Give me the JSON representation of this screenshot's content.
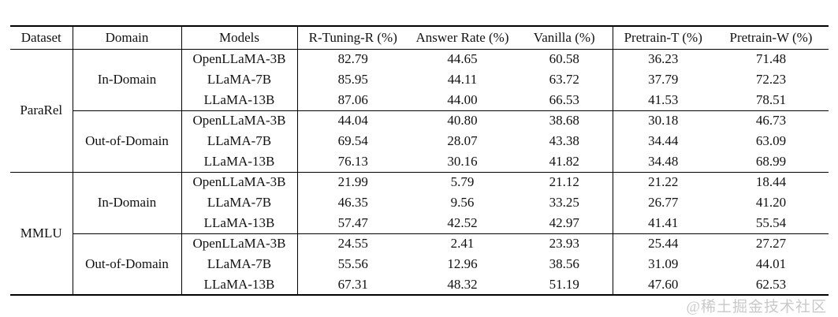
{
  "watermark": "@稀土掘金技术社区",
  "table": {
    "columns": [
      "Dataset",
      "Domain",
      "Models",
      "R-Tuning-R (%)",
      "Answer Rate (%)",
      "Vanilla (%)",
      "Pretrain-T (%)",
      "Pretrain-W (%)"
    ],
    "sections": [
      {
        "dataset": "ParaRel",
        "groups": [
          {
            "domain": "In-Domain",
            "rows": [
              {
                "model": "OpenLLaMA-3B",
                "values": [
                  {
                    "v": "82.79",
                    "bold": true
                  },
                  {
                    "v": "44.65",
                    "bold": false
                  },
                  {
                    "v": "60.58",
                    "bold": false
                  },
                  {
                    "v": "36.23",
                    "bold": false
                  },
                  {
                    "v": "71.48",
                    "bold": false
                  }
                ]
              },
              {
                "model": "LLaMA-7B",
                "values": [
                  {
                    "v": "85.95",
                    "bold": true
                  },
                  {
                    "v": "44.11",
                    "bold": false
                  },
                  {
                    "v": "63.72",
                    "bold": false
                  },
                  {
                    "v": "37.79",
                    "bold": false
                  },
                  {
                    "v": "72.23",
                    "bold": false
                  }
                ]
              },
              {
                "model": "LLaMA-13B",
                "values": [
                  {
                    "v": "87.06",
                    "bold": true
                  },
                  {
                    "v": "44.00",
                    "bold": false
                  },
                  {
                    "v": "66.53",
                    "bold": false
                  },
                  {
                    "v": "41.53",
                    "bold": false
                  },
                  {
                    "v": "78.51",
                    "bold": false
                  }
                ]
              }
            ]
          },
          {
            "domain": "Out-of-Domain",
            "rows": [
              {
                "model": "OpenLLaMA-3B",
                "values": [
                  {
                    "v": "44.04",
                    "bold": false
                  },
                  {
                    "v": "40.80",
                    "bold": false
                  },
                  {
                    "v": "38.68",
                    "bold": false
                  },
                  {
                    "v": "30.18",
                    "bold": false
                  },
                  {
                    "v": "46.73",
                    "bold": true
                  }
                ]
              },
              {
                "model": "LLaMA-7B",
                "values": [
                  {
                    "v": "69.54",
                    "bold": true
                  },
                  {
                    "v": "28.07",
                    "bold": false
                  },
                  {
                    "v": "43.38",
                    "bold": false
                  },
                  {
                    "v": "34.44",
                    "bold": false
                  },
                  {
                    "v": "63.09",
                    "bold": false
                  }
                ]
              },
              {
                "model": "LLaMA-13B",
                "values": [
                  {
                    "v": "76.13",
                    "bold": true
                  },
                  {
                    "v": "30.16",
                    "bold": false
                  },
                  {
                    "v": "41.82",
                    "bold": false
                  },
                  {
                    "v": "34.48",
                    "bold": false
                  },
                  {
                    "v": "68.99",
                    "bold": false
                  }
                ]
              }
            ]
          }
        ]
      },
      {
        "dataset": "MMLU",
        "groups": [
          {
            "domain": "In-Domain",
            "rows": [
              {
                "model": "OpenLLaMA-3B",
                "values": [
                  {
                    "v": "21.99",
                    "bold": true
                  },
                  {
                    "v": "5.79",
                    "bold": false
                  },
                  {
                    "v": "21.12",
                    "bold": false
                  },
                  {
                    "v": "21.22",
                    "bold": false
                  },
                  {
                    "v": "18.44",
                    "bold": false
                  }
                ]
              },
              {
                "model": "LLaMA-7B",
                "values": [
                  {
                    "v": "46.35",
                    "bold": true
                  },
                  {
                    "v": "9.56",
                    "bold": false
                  },
                  {
                    "v": "33.25",
                    "bold": false
                  },
                  {
                    "v": "26.77",
                    "bold": false
                  },
                  {
                    "v": "41.20",
                    "bold": false
                  }
                ]
              },
              {
                "model": "LLaMA-13B",
                "values": [
                  {
                    "v": "57.47",
                    "bold": true
                  },
                  {
                    "v": "42.52",
                    "bold": false
                  },
                  {
                    "v": "42.97",
                    "bold": false
                  },
                  {
                    "v": "41.41",
                    "bold": false
                  },
                  {
                    "v": "55.54",
                    "bold": false
                  }
                ]
              }
            ]
          },
          {
            "domain": "Out-of-Domain",
            "rows": [
              {
                "model": "OpenLLaMA-3B",
                "values": [
                  {
                    "v": "24.55",
                    "bold": false
                  },
                  {
                    "v": "2.41",
                    "bold": false
                  },
                  {
                    "v": "23.93",
                    "bold": false
                  },
                  {
                    "v": "25.44",
                    "bold": false
                  },
                  {
                    "v": "27.27",
                    "bold": true
                  }
                ]
              },
              {
                "model": "LLaMA-7B",
                "values": [
                  {
                    "v": "55.56",
                    "bold": true
                  },
                  {
                    "v": "12.96",
                    "bold": false
                  },
                  {
                    "v": "38.56",
                    "bold": false
                  },
                  {
                    "v": "31.09",
                    "bold": false
                  },
                  {
                    "v": "44.01",
                    "bold": false
                  }
                ]
              },
              {
                "model": "LLaMA-13B",
                "values": [
                  {
                    "v": "67.31",
                    "bold": true
                  },
                  {
                    "v": "48.32",
                    "bold": false
                  },
                  {
                    "v": "51.19",
                    "bold": false
                  },
                  {
                    "v": "47.60",
                    "bold": false
                  },
                  {
                    "v": "62.53",
                    "bold": false
                  }
                ]
              }
            ]
          }
        ]
      }
    ]
  }
}
